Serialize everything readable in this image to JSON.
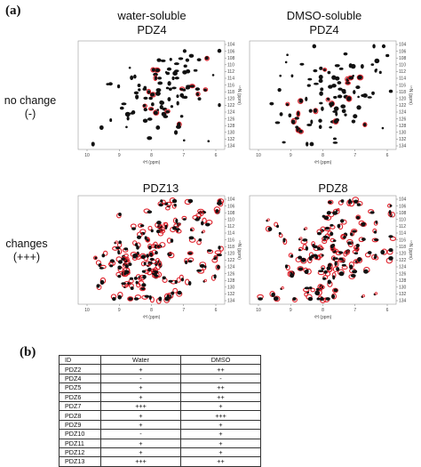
{
  "figure": {
    "panel_a_label": "(a)",
    "panel_b_label": "(b)",
    "column_titles": [
      [
        "water-soluble",
        "PDZ4"
      ],
      [
        "DMSO-soluble",
        "PDZ4"
      ]
    ],
    "row_labels": [
      [
        "no change",
        "(-)"
      ],
      [
        "changes",
        "(+++)"
      ]
    ],
    "spectra_titles": {
      "bottom_left": "PDZ13",
      "bottom_right": "PDZ8"
    },
    "x_axis_label": "¹H (ppm)",
    "y_axis_label": "¹⁵N (ppm)",
    "x_ticks": [
      "10",
      "9",
      "8",
      "7",
      "6"
    ],
    "y_ticks": [
      "104",
      "106",
      "108",
      "110",
      "112",
      "114",
      "116",
      "118",
      "120",
      "122",
      "124",
      "126",
      "128",
      "130",
      "132",
      "134"
    ],
    "series_colors": {
      "reference": "#111111",
      "treated": "#e0202a"
    }
  },
  "table": {
    "headers": [
      "ID",
      "Water",
      "DMSO"
    ],
    "rows": [
      [
        "PDZ2",
        "+",
        "++"
      ],
      [
        "PDZ4",
        "-",
        "-"
      ],
      [
        "PDZ5",
        "+",
        "++"
      ],
      [
        "PDZ6",
        "+",
        "++"
      ],
      [
        "PDZ7",
        "+++",
        "+"
      ],
      [
        "PDZ8",
        "+",
        "+++"
      ],
      [
        "PDZ9",
        "+",
        "+"
      ],
      [
        "PDZ10",
        "-",
        "+"
      ],
      [
        "PDZ11",
        "+",
        "+"
      ],
      [
        "PDZ12",
        "+",
        "+"
      ],
      [
        "PDZ13",
        "+++",
        "++"
      ]
    ]
  }
}
